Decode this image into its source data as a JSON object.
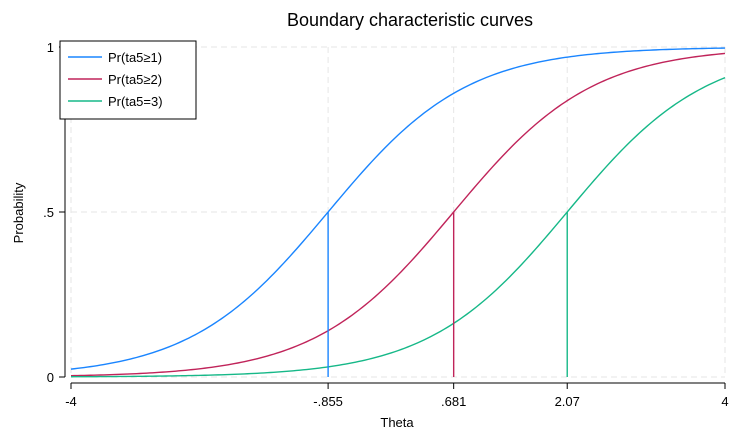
{
  "chart_data": {
    "type": "line",
    "title": "Boundary characteristic curves",
    "xlabel": "Theta",
    "ylabel": "Probability",
    "xlim": [
      -4,
      4
    ],
    "ylim": [
      0,
      1
    ],
    "x_ticks": [
      {
        "value": -4,
        "label": "-4"
      },
      {
        "value": -0.855,
        "label": "-.855"
      },
      {
        "value": 0.681,
        "label": ".681"
      },
      {
        "value": 2.07,
        "label": "2.07"
      },
      {
        "value": 4,
        "label": "4"
      }
    ],
    "y_ticks": [
      {
        "value": 0,
        "label": "0"
      },
      {
        "value": 0.5,
        "label": ".5"
      },
      {
        "value": 1,
        "label": "1"
      }
    ],
    "grid": true,
    "legend_position": "top-left",
    "series": [
      {
        "name": "Pr(ta5≥1)",
        "color": "#1a85ff",
        "location": -0.855,
        "slope": 1.18
      },
      {
        "name": "Pr(ta5≥2)",
        "color": "#c0245a",
        "location": 0.681,
        "slope": 1.18
      },
      {
        "name": "Pr(ta5=3)",
        "color": "#16b888",
        "location": 2.07,
        "slope": 1.18
      }
    ],
    "reference_lines": [
      {
        "x": -0.855,
        "y": 0.5,
        "color": "#1a85ff"
      },
      {
        "x": 0.681,
        "y": 0.5,
        "color": "#c0245a"
      },
      {
        "x": 2.07,
        "y": 0.5,
        "color": "#16b888"
      }
    ]
  }
}
